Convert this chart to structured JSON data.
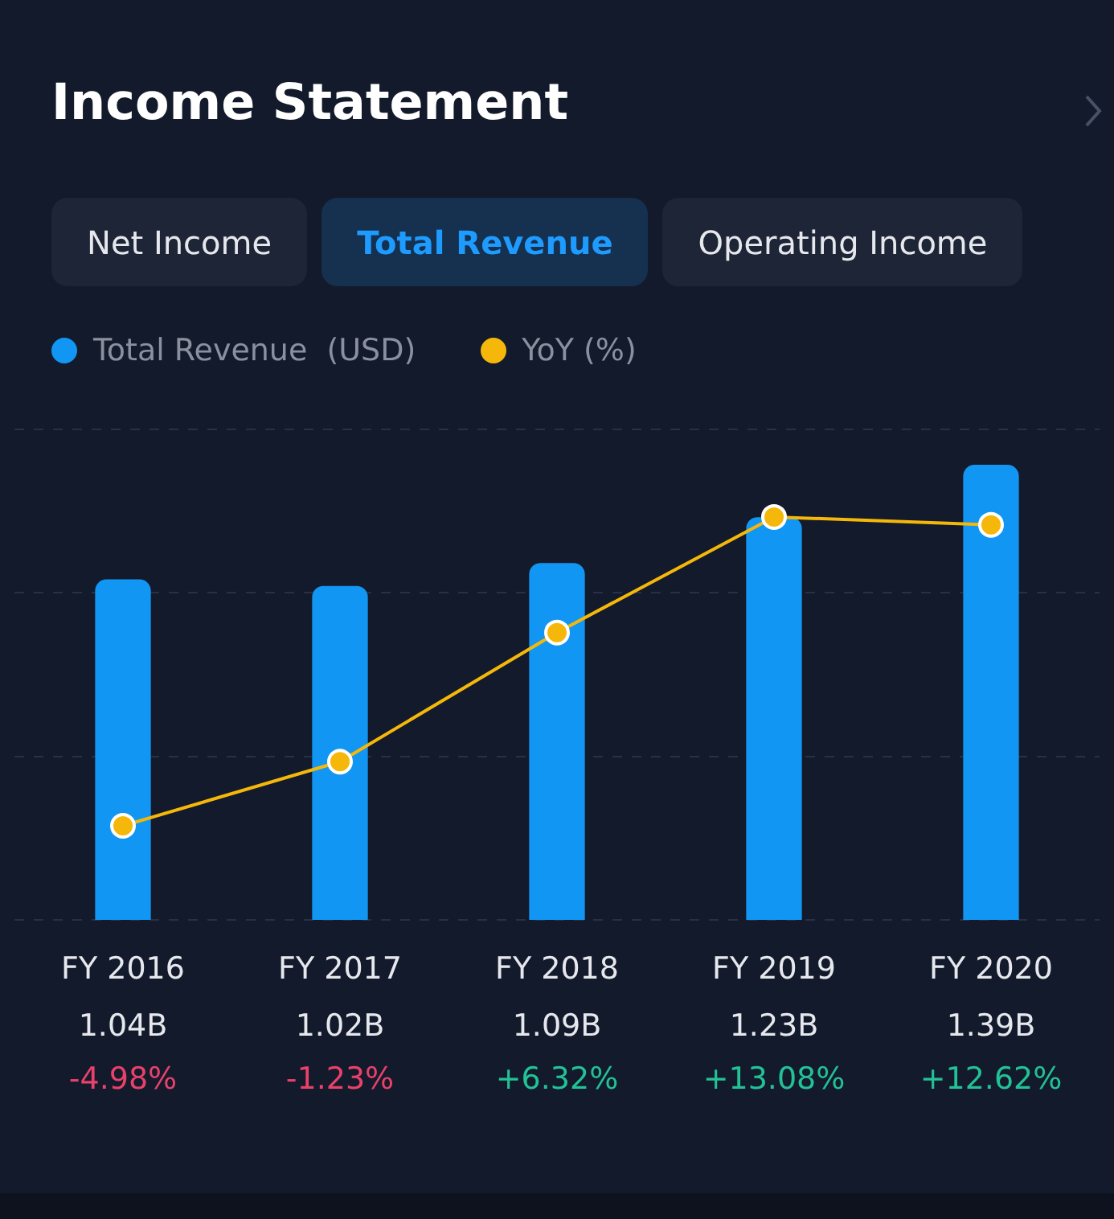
{
  "chart_data": {
    "type": "bar",
    "title": "Income Statement",
    "annotations": [
      "Net Income",
      "Total Revenue",
      "Operating Income"
    ],
    "categories": [
      "FY 2016",
      "FY 2017",
      "FY 2018",
      "FY 2019",
      "FY 2020"
    ],
    "series": [
      {
        "name": "Total Revenue  (USD)",
        "color": "#1296f3",
        "values": [
          1.04,
          1.02,
          1.09,
          1.23,
          1.39
        ],
        "value_labels": [
          "1.04B",
          "1.02B",
          "1.09B",
          "1.23B",
          "1.39B"
        ]
      },
      {
        "name": "YoY (%)",
        "type": "line",
        "axis": "y2",
        "color": "#f5b80a",
        "values": [
          -4.98,
          -1.23,
          6.32,
          13.08,
          12.62
        ],
        "value_labels": [
          "-4.98%",
          "-1.23%",
          "+6.32%",
          "+13.08%",
          "+12.62%"
        ]
      }
    ],
    "ylim": [
      0,
      1.5
    ],
    "yticks": [
      {
        "value": 0,
        "label": null
      },
      {
        "value": 0.5,
        "label": null
      },
      {
        "value": 1,
        "label": null
      },
      {
        "value": 1.5,
        "label": null
      }
    ],
    "y2lim": [
      -10.5,
      18.2
    ],
    "tick_labels": "x",
    "grid": "y",
    "legend": "top left",
    "marker": "circle",
    "line_style": "solid"
  }
}
